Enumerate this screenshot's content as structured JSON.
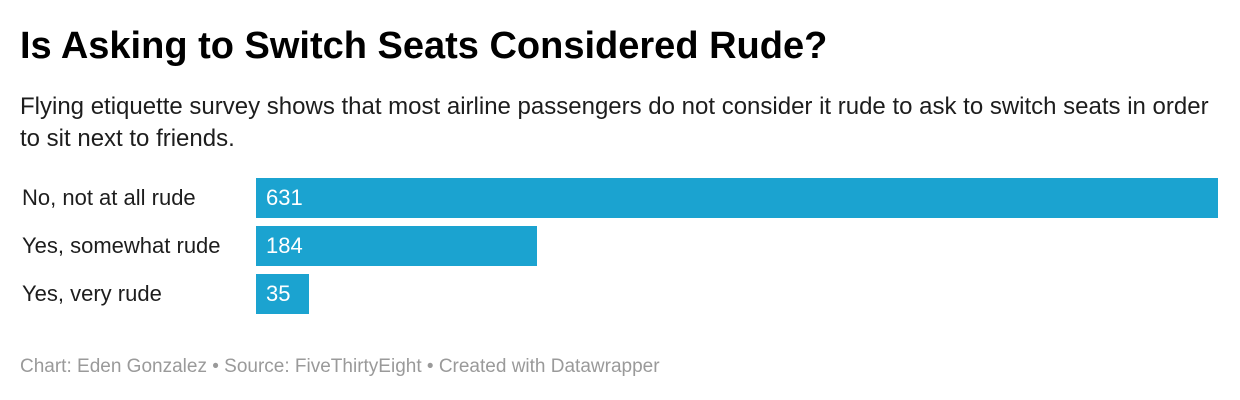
{
  "chart_data": {
    "type": "bar",
    "orientation": "horizontal",
    "title": "Is Asking to Switch Seats Considered Rude?",
    "subtitle": "Flying etiquette survey shows that most airline passengers do not consider it rude to ask to switch seats in order to sit next to friends.",
    "categories": [
      "No, not at all rude",
      "Yes, somewhat rude",
      "Yes, very rude"
    ],
    "values": [
      631,
      184,
      35
    ],
    "value_labels": [
      "631",
      "184",
      "35"
    ],
    "xlim": [
      0,
      631
    ],
    "grid": false,
    "legend": "none",
    "bar_color": "#1ba3d0"
  },
  "footer": {
    "credit": "Chart: Eden Gonzalez • Source: FiveThirtyEight • Created with Datawrapper"
  }
}
